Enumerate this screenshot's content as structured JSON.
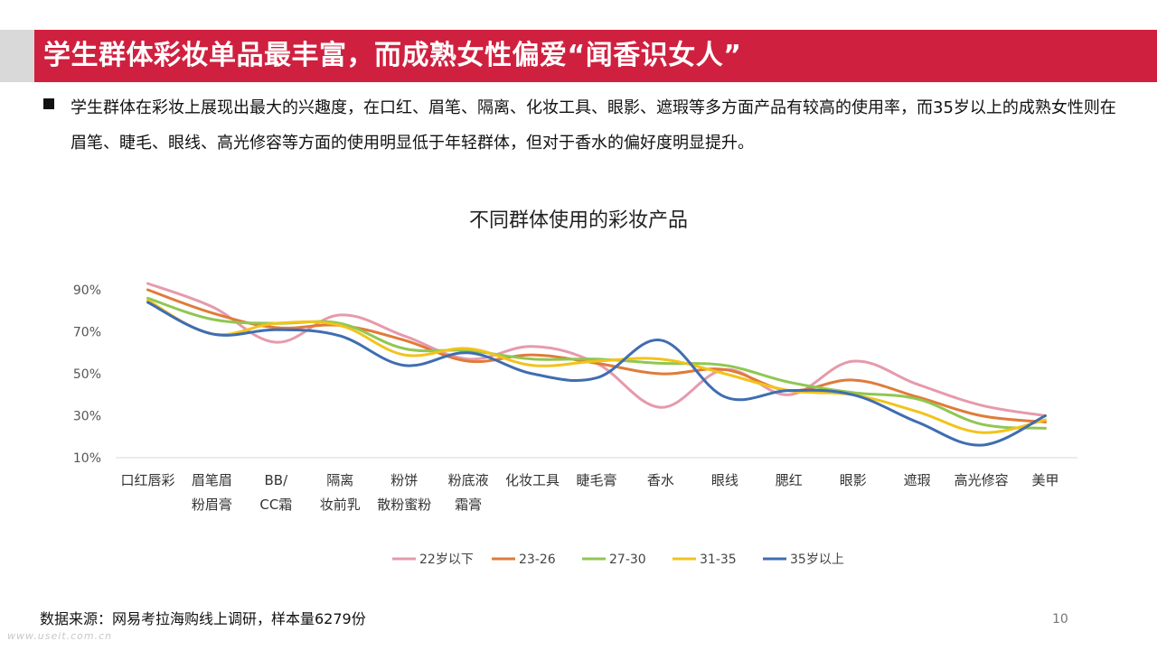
{
  "slide": {
    "title": "学生群体彩妆单品最丰富，而成熟女性偏爱“闻香识女人”",
    "body": "学生群体在彩妆上展现出最大的兴趣度，在口红、眉笔、隔离、化妆工具、眼影、遮瑕等多方面产品有较高的使用率，而35岁以上的成熟女性则在眉笔、睫毛、眼线、高光修容等方面的使用明显低于年轻群体，但对于香水的偏好度明显提升。",
    "source": "数据来源：网易考拉海购线上调研，样本量6279份",
    "page_number": "10",
    "watermark": "www.useit.com.cn"
  },
  "chart_data": {
    "type": "line",
    "title": "不同群体使用的彩妆产品",
    "categories": [
      [
        "口红唇彩"
      ],
      [
        "眉笔眉",
        "粉眉膏"
      ],
      [
        "BB/",
        "CC霜"
      ],
      [
        "隔离",
        "妆前乳"
      ],
      [
        "粉饼",
        "散粉蜜粉"
      ],
      [
        "粉底液",
        "霜膏"
      ],
      [
        "化妆工具"
      ],
      [
        "睫毛膏"
      ],
      [
        "香水"
      ],
      [
        "眼线"
      ],
      [
        "腮红"
      ],
      [
        "眼影"
      ],
      [
        "遮瑕"
      ],
      [
        "高光修容"
      ],
      [
        "美甲"
      ]
    ],
    "yticks": [
      "90%",
      "70%",
      "50%",
      "30%",
      "10%"
    ],
    "ylim": [
      10,
      90
    ],
    "smooth": true,
    "legend_position": "bottom",
    "series": [
      {
        "name": "22岁以下",
        "color": "#e69aac",
        "values": [
          93,
          82,
          65,
          78,
          68,
          57,
          63,
          55,
          34,
          52,
          40,
          56,
          45,
          35,
          30
        ]
      },
      {
        "name": "23-26",
        "color": "#e07b39",
        "values": [
          90,
          79,
          72,
          73,
          66,
          56,
          59,
          55,
          50,
          52,
          42,
          47,
          39,
          30,
          27
        ]
      },
      {
        "name": "27-30",
        "color": "#8fc752",
        "values": [
          86,
          76,
          74,
          74,
          62,
          61,
          57,
          57,
          55,
          54,
          46,
          41,
          38,
          26,
          24
        ]
      },
      {
        "name": "31-35",
        "color": "#f2c31b",
        "values": [
          85,
          69,
          74,
          73,
          59,
          62,
          54,
          56,
          57,
          50,
          42,
          40,
          32,
          22,
          28
        ]
      },
      {
        "name": "35岁以上",
        "color": "#3f6db1",
        "values": [
          84,
          69,
          71,
          68,
          54,
          60,
          50,
          48,
          66,
          39,
          42,
          40,
          27,
          16,
          30
        ]
      }
    ]
  }
}
